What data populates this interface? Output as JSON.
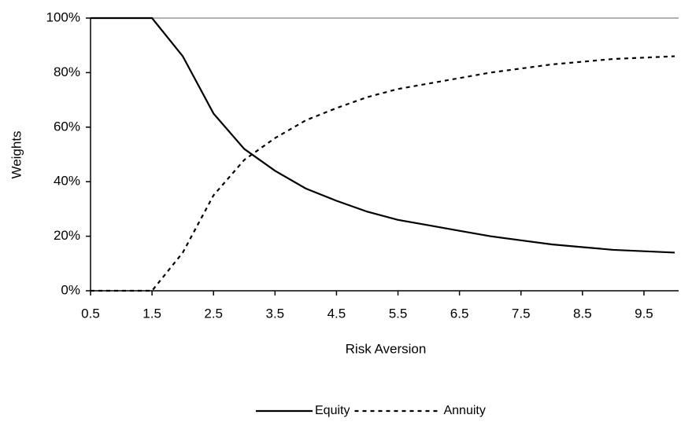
{
  "chart_data": {
    "type": "line",
    "x_label": "Risk Aversion",
    "y_label": "Weights",
    "x": [
      0.5,
      1,
      1.5,
      2,
      2.5,
      3,
      3.5,
      4,
      4.5,
      5,
      5.5,
      6,
      6.5,
      7,
      7.5,
      8,
      8.5,
      9,
      9.5,
      10
    ],
    "series": [
      {
        "name": "Equity",
        "color": "#000000",
        "dash": "solid",
        "values": [
          100,
          100,
          100,
          86,
          65,
          52,
          44,
          37.5,
          33,
          29,
          26,
          24,
          22,
          20,
          18.5,
          17,
          16,
          15,
          14.5,
          14
        ]
      },
      {
        "name": "Annuity",
        "color": "#000000",
        "dash": "dashed",
        "values": [
          0,
          0,
          0,
          14,
          35,
          48,
          56,
          62.5,
          67,
          71,
          74,
          76,
          78,
          80,
          81.5,
          83,
          84,
          85,
          85.5,
          86
        ]
      }
    ],
    "xlim": [
      0.5,
      10
    ],
    "xticks": [
      0.5,
      1.5,
      2.5,
      3.5,
      4.5,
      5.5,
      6.5,
      7.5,
      8.5,
      9.5
    ],
    "ylim": [
      0,
      100
    ],
    "yticks": [
      {
        "value": 0,
        "label": "0%"
      },
      {
        "value": 20,
        "label": "20%"
      },
      {
        "value": 40,
        "label": "40%"
      },
      {
        "value": 60,
        "label": "60%"
      },
      {
        "value": 80,
        "label": "80%"
      },
      {
        "value": 100,
        "label": "100%"
      }
    ],
    "legend": "bottom"
  }
}
